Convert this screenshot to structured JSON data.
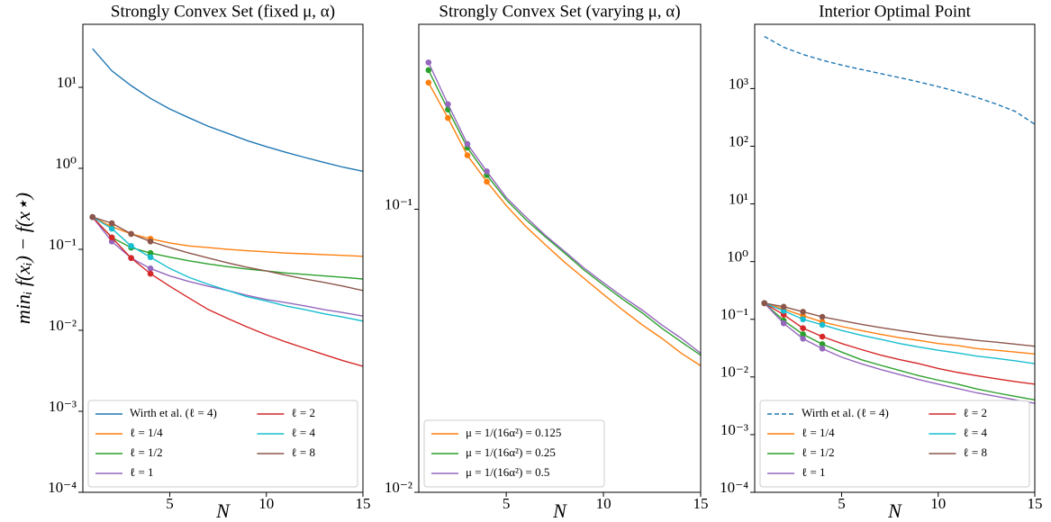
{
  "chart_data": [
    {
      "type": "line",
      "title": "Strongly Convex Set (fixed μ, α)",
      "xlabel": "N",
      "ylabel": "minᵢ f(xᵢ) − f(x⋆)",
      "x": [
        1,
        2,
        3,
        4,
        5,
        6,
        7,
        8,
        9,
        10,
        11,
        12,
        13,
        14,
        15
      ],
      "xlim": [
        0.5,
        15
      ],
      "xticks": [
        5,
        10,
        15
      ],
      "yscale": "log",
      "ylim": [
        0.0001,
        60
      ],
      "yticks": [
        {
          "value": 0.0001,
          "label": "10⁻⁴"
        },
        {
          "value": 0.001,
          "label": "10⁻³"
        },
        {
          "value": 0.01,
          "label": "10⁻²"
        },
        {
          "value": 0.1,
          "label": "10⁻¹"
        },
        {
          "value": 1,
          "label": "10⁰"
        },
        {
          "value": 10,
          "label": "10¹"
        }
      ],
      "legend": "lower left",
      "legend_columns": 2,
      "marker_xmax": 4,
      "series": [
        {
          "name": "Wirth et al. (ℓ = 4)",
          "color": "#1f77b4",
          "linestyle": "solid",
          "marker": false,
          "values": [
            30,
            16,
            10.5,
            7.3,
            5.4,
            4.2,
            3.3,
            2.7,
            2.2,
            1.85,
            1.58,
            1.36,
            1.18,
            1.03,
            0.92
          ]
        },
        {
          "name": "ℓ = 1/4",
          "color": "#ff7f0e",
          "linestyle": "solid",
          "marker": true,
          "values": [
            0.25,
            0.19,
            0.155,
            0.135,
            0.12,
            0.11,
            0.105,
            0.1,
            0.096,
            0.093,
            0.09,
            0.088,
            0.086,
            0.084,
            0.082
          ]
        },
        {
          "name": "ℓ = 1/2",
          "color": "#2ca02c",
          "linestyle": "solid",
          "marker": true,
          "values": [
            0.25,
            0.14,
            0.105,
            0.09,
            0.08,
            0.072,
            0.066,
            0.061,
            0.057,
            0.054,
            0.051,
            0.049,
            0.047,
            0.045,
            0.043
          ]
        },
        {
          "name": "ℓ = 1",
          "color": "#9467bd",
          "linestyle": "solid",
          "marker": true,
          "values": [
            0.25,
            0.125,
            0.078,
            0.058,
            0.047,
            0.04,
            0.035,
            0.031,
            0.027,
            0.024,
            0.022,
            0.02,
            0.018,
            0.0165,
            0.015
          ]
        },
        {
          "name": "ℓ = 2",
          "color": "#d62728",
          "linestyle": "solid",
          "marker": true,
          "values": [
            0.25,
            0.14,
            0.078,
            0.05,
            0.035,
            0.025,
            0.018,
            0.014,
            0.011,
            0.0088,
            0.0072,
            0.006,
            0.005,
            0.0042,
            0.0036
          ]
        },
        {
          "name": "ℓ = 4",
          "color": "#17becf",
          "linestyle": "solid",
          "marker": true,
          "values": [
            0.25,
            0.18,
            0.11,
            0.08,
            0.058,
            0.045,
            0.037,
            0.031,
            0.026,
            0.023,
            0.02,
            0.018,
            0.016,
            0.0145,
            0.013
          ]
        },
        {
          "name": "ℓ = 8",
          "color": "#8c564b",
          "linestyle": "solid",
          "marker": true,
          "values": [
            0.25,
            0.21,
            0.155,
            0.125,
            0.105,
            0.09,
            0.078,
            0.068,
            0.06,
            0.054,
            0.048,
            0.043,
            0.039,
            0.035,
            0.031
          ]
        }
      ]
    },
    {
      "type": "line",
      "title": "Strongly Convex Set (varying μ, α)",
      "xlabel": "N",
      "x": [
        1,
        2,
        3,
        4,
        5,
        6,
        7,
        8,
        9,
        10,
        11,
        12,
        13,
        14,
        15
      ],
      "xlim": [
        0.5,
        15
      ],
      "xticks": [
        5,
        10,
        15
      ],
      "yscale": "log",
      "ylim": [
        0.01,
        0.45
      ],
      "yticks": [
        {
          "value": 0.01,
          "label": "10⁻²"
        },
        {
          "value": 0.1,
          "label": "10⁻¹"
        }
      ],
      "legend": "lower left",
      "legend_columns": 1,
      "marker_xmax": 4,
      "series": [
        {
          "name": "μ = 1/(16α²) = 0.125",
          "color": "#ff7f0e",
          "linestyle": "solid",
          "marker": true,
          "values": [
            0.28,
            0.21,
            0.155,
            0.125,
            0.103,
            0.087,
            0.075,
            0.065,
            0.057,
            0.05,
            0.044,
            0.039,
            0.035,
            0.031,
            0.028
          ]
        },
        {
          "name": "μ = 1/(16α²) = 0.25",
          "color": "#2ca02c",
          "linestyle": "solid",
          "marker": true,
          "values": [
            0.31,
            0.225,
            0.165,
            0.132,
            0.108,
            0.092,
            0.08,
            0.07,
            0.061,
            0.054,
            0.048,
            0.043,
            0.038,
            0.034,
            0.0305
          ]
        },
        {
          "name": "μ = 1/(16α²) = 0.5",
          "color": "#9467bd",
          "linestyle": "solid",
          "marker": true,
          "values": [
            0.33,
            0.235,
            0.17,
            0.136,
            0.11,
            0.094,
            0.081,
            0.071,
            0.062,
            0.055,
            0.049,
            0.044,
            0.039,
            0.035,
            0.031
          ]
        }
      ]
    },
    {
      "type": "line",
      "title": "Interior Optimal Point",
      "xlabel": "N",
      "x": [
        1,
        2,
        3,
        4,
        5,
        6,
        7,
        8,
        9,
        10,
        11,
        12,
        13,
        14,
        15
      ],
      "xlim": [
        0.5,
        15
      ],
      "xticks": [
        5,
        10,
        15
      ],
      "yscale": "log",
      "ylim": [
        0.0001,
        13000
      ],
      "yticks": [
        {
          "value": 0.0001,
          "label": "10⁻⁴"
        },
        {
          "value": 0.001,
          "label": "10⁻³"
        },
        {
          "value": 0.01,
          "label": "10⁻²"
        },
        {
          "value": 0.1,
          "label": "10⁻¹"
        },
        {
          "value": 1,
          "label": "10⁰"
        },
        {
          "value": 10,
          "label": "10¹"
        },
        {
          "value": 100,
          "label": "10²"
        },
        {
          "value": 1000,
          "label": "10³"
        }
      ],
      "legend": "lower left",
      "legend_columns": 2,
      "marker_xmax": 4,
      "series": [
        {
          "name": "Wirth et al. (ℓ = 4)",
          "color": "#1f77b4",
          "linestyle": "dashed",
          "marker": false,
          "values": [
            8000,
            5200,
            3900,
            3100,
            2550,
            2150,
            1820,
            1550,
            1300,
            1080,
            880,
            700,
            540,
            400,
            240
          ]
        },
        {
          "name": "ℓ = 1/4",
          "color": "#ff7f0e",
          "linestyle": "solid",
          "marker": true,
          "values": [
            0.19,
            0.15,
            0.115,
            0.09,
            0.075,
            0.064,
            0.055,
            0.048,
            0.043,
            0.038,
            0.035,
            0.031,
            0.029,
            0.027,
            0.025
          ]
        },
        {
          "name": "ℓ = 1/2",
          "color": "#2ca02c",
          "linestyle": "solid",
          "marker": true,
          "values": [
            0.19,
            0.095,
            0.055,
            0.037,
            0.027,
            0.02,
            0.016,
            0.013,
            0.0105,
            0.0088,
            0.0075,
            0.0062,
            0.0053,
            0.0046,
            0.004
          ]
        },
        {
          "name": "ℓ = 1",
          "color": "#9467bd",
          "linestyle": "solid",
          "marker": true,
          "values": [
            0.19,
            0.085,
            0.046,
            0.031,
            0.022,
            0.017,
            0.0135,
            0.011,
            0.009,
            0.0075,
            0.0063,
            0.0053,
            0.0046,
            0.004,
            0.0035
          ]
        },
        {
          "name": "ℓ = 2",
          "color": "#d62728",
          "linestyle": "solid",
          "marker": true,
          "values": [
            0.19,
            0.12,
            0.07,
            0.05,
            0.038,
            0.03,
            0.024,
            0.02,
            0.017,
            0.014,
            0.012,
            0.0105,
            0.0093,
            0.0083,
            0.0075
          ]
        },
        {
          "name": "ℓ = 4",
          "color": "#17becf",
          "linestyle": "solid",
          "marker": true,
          "values": [
            0.19,
            0.14,
            0.1,
            0.08,
            0.064,
            0.053,
            0.045,
            0.038,
            0.033,
            0.029,
            0.026,
            0.023,
            0.021,
            0.019,
            0.017
          ]
        },
        {
          "name": "ℓ = 8",
          "color": "#8c564b",
          "linestyle": "solid",
          "marker": true,
          "values": [
            0.19,
            0.165,
            0.135,
            0.11,
            0.095,
            0.082,
            0.072,
            0.064,
            0.057,
            0.051,
            0.047,
            0.043,
            0.04,
            0.037,
            0.034
          ]
        }
      ]
    }
  ]
}
